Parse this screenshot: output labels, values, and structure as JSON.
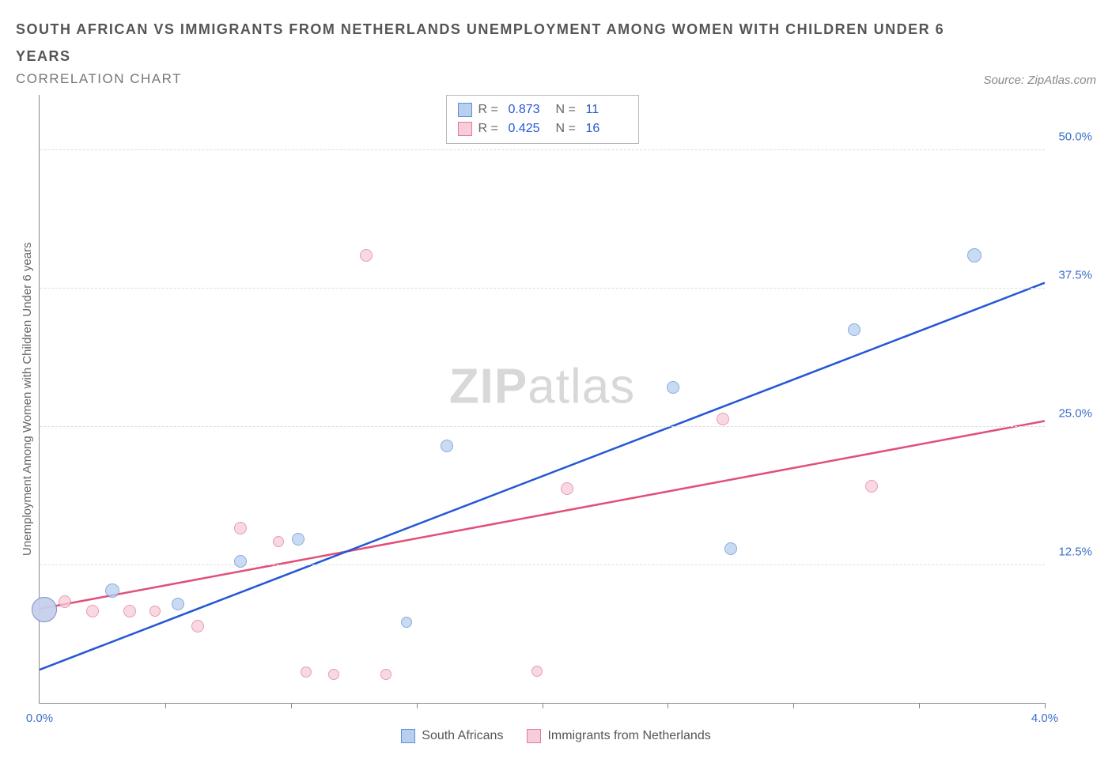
{
  "title_line1": "SOUTH AFRICAN VS IMMIGRANTS FROM NETHERLANDS UNEMPLOYMENT AMONG WOMEN WITH CHILDREN UNDER 6 YEARS",
  "title_line2": "CORRELATION CHART",
  "source_label": "Source: ZipAtlas.com",
  "y_axis_label": "Unemployment Among Women with Children Under 6 years",
  "watermark_bold": "ZIP",
  "watermark_light": "atlas",
  "chart": {
    "type": "scatter",
    "xlim": [
      0,
      4.0
    ],
    "ylim": [
      0,
      55
    ],
    "y_ticks": [
      {
        "v": 12.5,
        "label": "12.5%"
      },
      {
        "v": 25.0,
        "label": "25.0%"
      },
      {
        "v": 37.5,
        "label": "37.5%"
      },
      {
        "v": 50.0,
        "label": "50.0%"
      }
    ],
    "x_ticks_minor": [
      0.5,
      1.0,
      1.5,
      2.0,
      2.5,
      3.0,
      3.5,
      4.0
    ],
    "x_labels": [
      {
        "v": 0.0,
        "label": "0.0%"
      },
      {
        "v": 4.0,
        "label": "4.0%"
      }
    ],
    "grid_color": "#dddddd",
    "background_color": "#ffffff",
    "series": {
      "sa": {
        "name": "South Africans",
        "fill": "#b8d0f0",
        "stroke": "#5f8fd6",
        "line_color": "#2457d6",
        "line_width": 2.5,
        "trend": {
          "x1": 0.0,
          "y1": 3.0,
          "x2": 4.0,
          "y2": 38.0
        },
        "stats": {
          "R_label": "R = ",
          "R": "0.873",
          "N_label": "N = ",
          "N": "11"
        },
        "points": [
          {
            "x": 0.02,
            "y": 8.5,
            "r": 16
          },
          {
            "x": 0.29,
            "y": 10.2,
            "r": 9
          },
          {
            "x": 0.55,
            "y": 9.0,
            "r": 8
          },
          {
            "x": 0.8,
            "y": 12.8,
            "r": 8
          },
          {
            "x": 1.03,
            "y": 14.8,
            "r": 8
          },
          {
            "x": 1.46,
            "y": 7.3,
            "r": 7
          },
          {
            "x": 1.62,
            "y": 23.3,
            "r": 8
          },
          {
            "x": 2.52,
            "y": 28.6,
            "r": 8
          },
          {
            "x": 2.75,
            "y": 14.0,
            "r": 8
          },
          {
            "x": 3.24,
            "y": 33.8,
            "r": 8
          },
          {
            "x": 3.72,
            "y": 40.5,
            "r": 9
          }
        ]
      },
      "nl": {
        "name": "Immigrants from Netherlands",
        "fill": "#f6cdd8",
        "stroke": "#e27a9a",
        "line_color": "#e05078",
        "line_width": 2.5,
        "trend": {
          "x1": 0.0,
          "y1": 8.5,
          "x2": 4.0,
          "y2": 25.5
        },
        "stats": {
          "R_label": "R = ",
          "R": "0.425",
          "N_label": "N = ",
          "N": "16"
        },
        "points": [
          {
            "x": 0.02,
            "y": 8.5,
            "r": 16
          },
          {
            "x": 0.1,
            "y": 9.2,
            "r": 8
          },
          {
            "x": 0.21,
            "y": 8.3,
            "r": 8
          },
          {
            "x": 0.36,
            "y": 8.3,
            "r": 8
          },
          {
            "x": 0.46,
            "y": 8.3,
            "r": 7
          },
          {
            "x": 0.63,
            "y": 7.0,
            "r": 8
          },
          {
            "x": 0.8,
            "y": 15.8,
            "r": 8
          },
          {
            "x": 0.95,
            "y": 14.6,
            "r": 7
          },
          {
            "x": 1.06,
            "y": 2.8,
            "r": 7
          },
          {
            "x": 1.17,
            "y": 2.6,
            "r": 7
          },
          {
            "x": 1.3,
            "y": 40.5,
            "r": 8
          },
          {
            "x": 1.38,
            "y": 2.6,
            "r": 7
          },
          {
            "x": 1.98,
            "y": 2.9,
            "r": 7
          },
          {
            "x": 2.1,
            "y": 19.4,
            "r": 8
          },
          {
            "x": 2.72,
            "y": 25.7,
            "r": 8
          },
          {
            "x": 3.31,
            "y": 19.6,
            "r": 8
          }
        ]
      }
    }
  }
}
